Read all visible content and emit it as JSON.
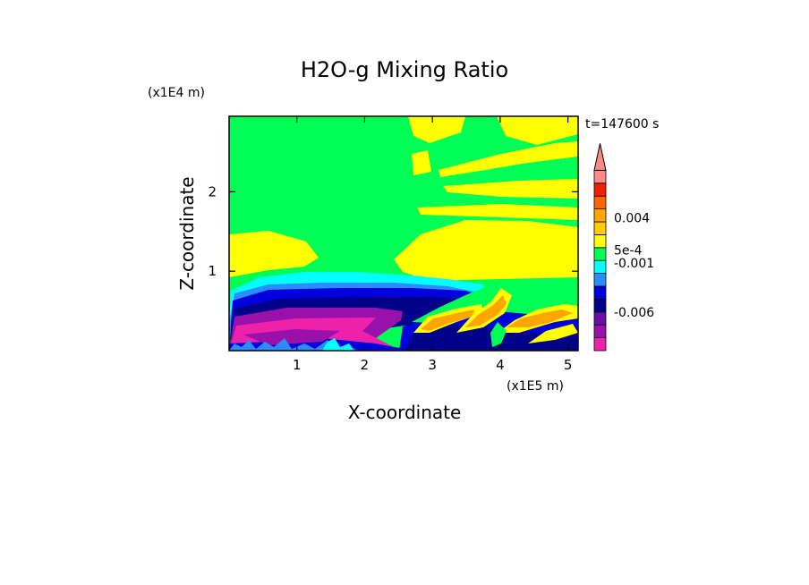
{
  "chart_data": {
    "type": "heatmap",
    "title": "H2O-g Mixing Ratio",
    "xlabel": "X-coordinate",
    "ylabel": "Z-coordinate",
    "x_scale_label": "(x1E5 m)",
    "y_scale_label": "(x1E4 m)",
    "time_label": "t=147600 s",
    "xlim": [
      0,
      5.15
    ],
    "ylim": [
      0,
      2.95
    ],
    "x_ticks": [
      1,
      2,
      3,
      4,
      5
    ],
    "y_ticks": [
      1,
      2
    ],
    "grid": false,
    "colorbar": {
      "placement": "right",
      "extend": "max",
      "colors": [
        "#ee22aa",
        "#9911aa",
        "#6a0dad",
        "#00008b",
        "#0000dd",
        "#2a8cff",
        "#00ffff",
        "#00ff55",
        "#ffff00",
        "#ffcc00",
        "#ffa500",
        "#ff6600",
        "#ee2200",
        "#ff8888"
      ],
      "labels": [
        {
          "text": "-0.006",
          "level": 3
        },
        {
          "text": "-0.001",
          "level": 6.8
        },
        {
          "text": "5e-4",
          "level": 7.8
        },
        {
          "text": "0.004",
          "level": 10.3
        }
      ]
    }
  }
}
